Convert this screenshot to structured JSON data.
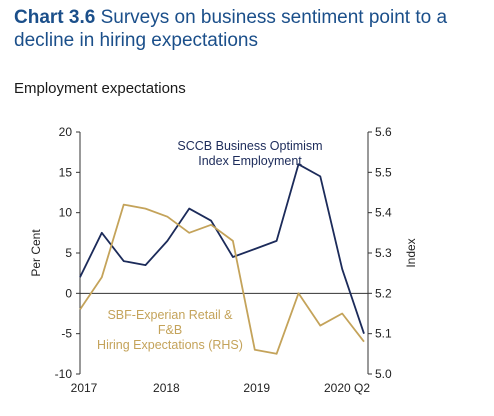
{
  "title_prefix": "Chart 3.6",
  "title_text": "Surveys on business sentiment point to a decline in hiring expectations",
  "subtitle": "Employment expectations",
  "chart_data": {
    "type": "line",
    "ylabel_left": "Per Cent",
    "ylabel_right": "Index",
    "ylim_left": [
      -10,
      20
    ],
    "yticks_left": [
      "20",
      "15",
      "10",
      "5",
      "0",
      "-5",
      "-10"
    ],
    "ylim_right": [
      5.0,
      5.6
    ],
    "yticks_right": [
      "5.6",
      "5.5",
      "5.4",
      "5.3",
      "5.2",
      "5.1",
      "5.0"
    ],
    "x_tick_labels": [
      "2017",
      "2018",
      "2019",
      "2020 Q2"
    ],
    "x_quarters": [
      "2017 Q1",
      "2017 Q2",
      "2017 Q3",
      "2017 Q4",
      "2018 Q1",
      "2018 Q2",
      "2018 Q3",
      "2018 Q4",
      "2019 Q1",
      "2019 Q2",
      "2019 Q3",
      "2019 Q4",
      "2020 Q1",
      "2020 Q2"
    ],
    "colors": {
      "sccb": "#1c2b5a",
      "sbf": "#c4a35a"
    },
    "series": [
      {
        "key": "sccb",
        "axis": "left",
        "label_lines": [
          "SCCB Business Optimism",
          "Index Employment"
        ],
        "values": [
          2,
          7.5,
          4,
          3.5,
          6.5,
          10.5,
          9,
          4.5,
          5.5,
          6.5,
          16,
          14.5,
          3,
          -5
        ]
      },
      {
        "key": "sbf",
        "axis": "right",
        "label_lines": [
          "SBF-Experian Retail &",
          "F&B",
          "Hiring Expectations (RHS)"
        ],
        "values": [
          5.16,
          5.24,
          5.42,
          5.41,
          5.39,
          5.35,
          5.37,
          5.33,
          5.06,
          5.05,
          5.2,
          5.12,
          5.15,
          5.08
        ]
      }
    ],
    "legend": "inline annotations"
  }
}
